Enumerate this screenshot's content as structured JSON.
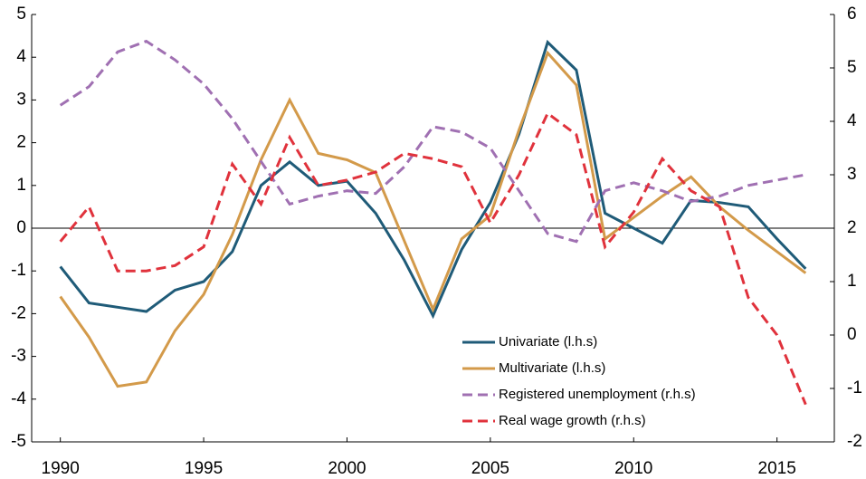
{
  "chart_data": {
    "type": "line",
    "x": [
      1990,
      1991,
      1992,
      1993,
      1994,
      1995,
      1996,
      1997,
      1998,
      1999,
      2000,
      2001,
      2002,
      2003,
      2004,
      2005,
      2006,
      2007,
      2008,
      2009,
      2010,
      2011,
      2012,
      2013,
      2014,
      2015,
      2016
    ],
    "series": [
      {
        "name": "Univariate (l.h.s)",
        "color": "#1f5b78",
        "dash": false,
        "axis": "y",
        "values": [
          -0.9,
          -1.75,
          -1.85,
          -1.95,
          -1.45,
          -1.25,
          -0.55,
          1.0,
          1.55,
          1.0,
          1.1,
          0.35,
          -0.75,
          -2.05,
          -0.5,
          0.6,
          2.2,
          4.35,
          3.7,
          0.35,
          0.0,
          -0.35,
          0.65,
          0.6,
          0.5,
          -0.25,
          -0.95
        ]
      },
      {
        "name": "Multivariate  (l.h.s)",
        "color": "#d39a4a",
        "dash": false,
        "axis": "y",
        "values": [
          -1.6,
          -2.55,
          -3.7,
          -3.6,
          -2.4,
          -1.55,
          -0.15,
          1.6,
          3.0,
          1.75,
          1.6,
          1.3,
          -0.3,
          -1.9,
          -0.25,
          0.3,
          2.3,
          4.1,
          3.35,
          -0.25,
          0.25,
          0.75,
          1.2,
          0.5,
          -0.05,
          -0.55,
          -1.05
        ]
      },
      {
        "name": "Registered unemployment  (r.h.s)",
        "color": "#a070b2",
        "dash": true,
        "axis": "y2",
        "values": [
          4.3,
          4.65,
          5.3,
          5.5,
          5.15,
          4.7,
          4.05,
          3.25,
          2.45,
          2.6,
          2.7,
          2.65,
          3.15,
          3.9,
          3.8,
          3.5,
          2.7,
          1.9,
          1.75,
          2.7,
          2.85,
          2.7,
          2.5,
          2.6,
          2.8,
          2.9,
          3.0
        ]
      },
      {
        "name": "Real wage growth (r.h.s)",
        "color": "#e0323c",
        "dash": true,
        "axis": "y2",
        "values": [
          1.75,
          2.4,
          1.2,
          1.2,
          1.3,
          1.65,
          3.2,
          2.45,
          3.7,
          2.8,
          2.9,
          3.05,
          3.4,
          3.3,
          3.15,
          2.1,
          3.0,
          4.15,
          3.75,
          1.65,
          2.3,
          3.3,
          2.7,
          2.4,
          0.7,
          0.0,
          -1.3
        ]
      }
    ],
    "xlim": [
      1989,
      2017
    ],
    "xticks": [
      1990,
      1995,
      2000,
      2005,
      2010,
      2015
    ],
    "ylim": [
      -5,
      5
    ],
    "yticks": [
      -5,
      -4,
      -3,
      -2,
      -1,
      0,
      1,
      2,
      3,
      4,
      5
    ],
    "y2lim": [
      -2,
      6
    ],
    "y2ticks": [
      -2,
      -1,
      0,
      1,
      2,
      3,
      4,
      5,
      6
    ],
    "zero_line": true
  }
}
